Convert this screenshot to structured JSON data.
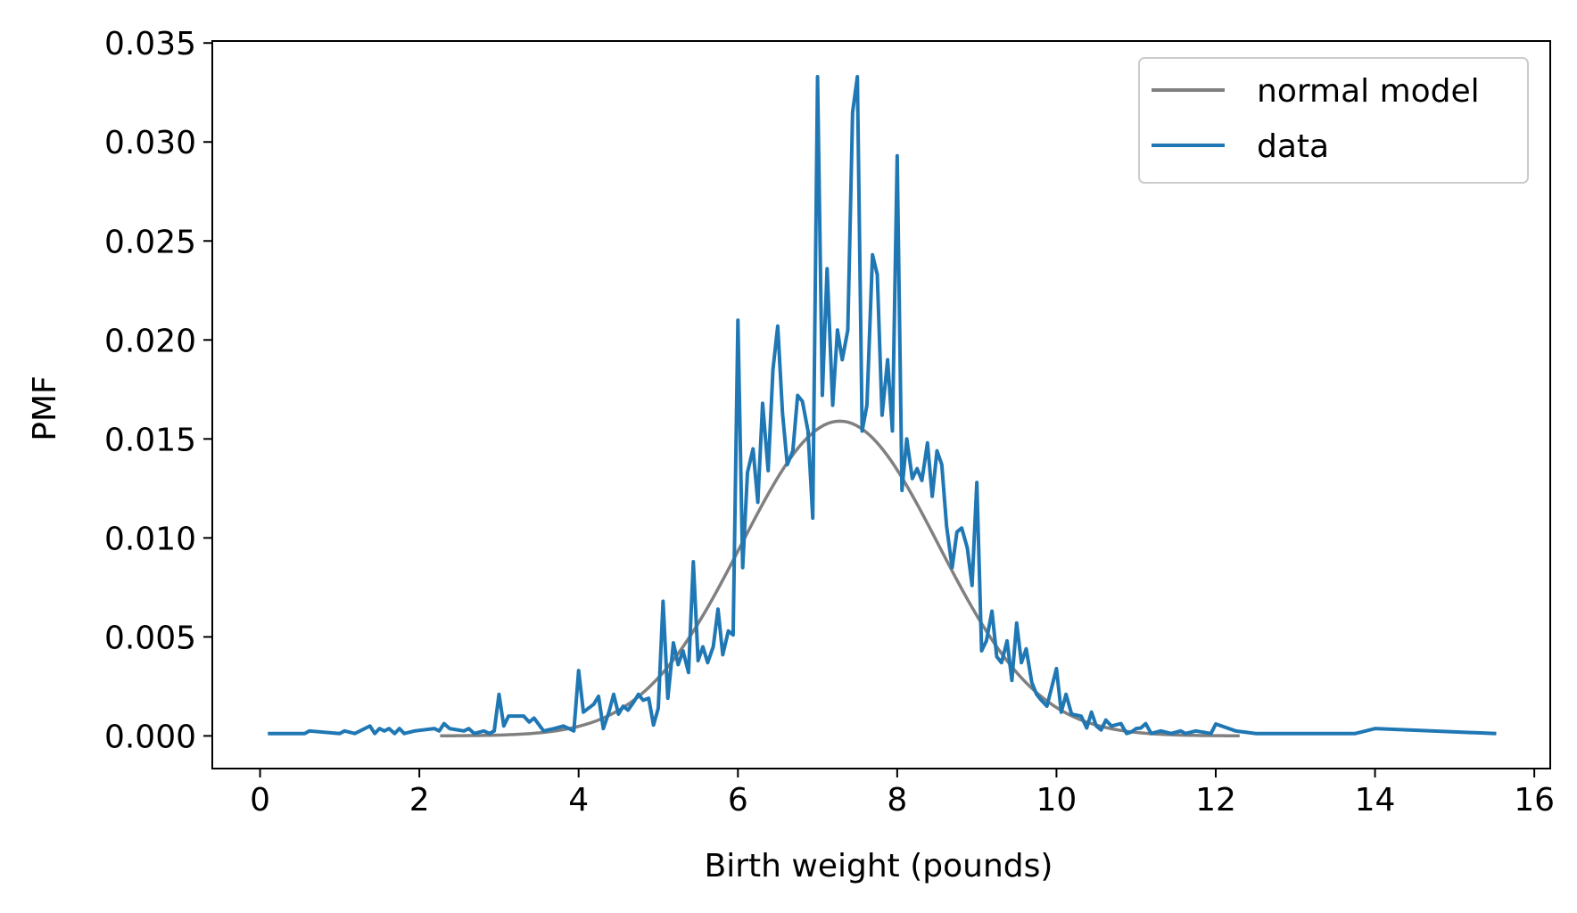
{
  "chart_data": {
    "type": "line",
    "title": "",
    "xlabel": "Birth weight (pounds)",
    "ylabel": "PMF",
    "xlim": [
      -0.6,
      16.2
    ],
    "ylim": [
      -0.00165,
      0.0351
    ],
    "xticks": [
      0,
      2,
      4,
      6,
      8,
      10,
      12,
      14,
      16
    ],
    "xtick_labels": [
      "0",
      "2",
      "4",
      "6",
      "8",
      "10",
      "12",
      "14",
      "16"
    ],
    "yticks": [
      0.0,
      0.005,
      0.01,
      0.015,
      0.02,
      0.025,
      0.03,
      0.035
    ],
    "ytick_labels": [
      "0.000",
      "0.005",
      "0.010",
      "0.015",
      "0.020",
      "0.025",
      "0.030",
      "0.035"
    ],
    "grid": false,
    "legend": {
      "position": "top-right",
      "entries": [
        "normal model",
        "data"
      ]
    },
    "series": [
      {
        "name": "normal model",
        "color": "#808080",
        "kind": "normal-curve",
        "mean": 7.28,
        "sd": 1.24,
        "peak": 0.0159,
        "x_range": [
          2.28,
          12.28
        ]
      },
      {
        "name": "data",
        "color": "#1f77b4",
        "points": [
          [
            0.12,
            0.00012
          ],
          [
            0.56,
            0.00012
          ],
          [
            0.62,
            0.00025
          ],
          [
            1.0,
            0.00012
          ],
          [
            1.06,
            0.00025
          ],
          [
            1.19,
            0.00012
          ],
          [
            1.38,
            0.0005
          ],
          [
            1.44,
            0.00012
          ],
          [
            1.5,
            0.00037
          ],
          [
            1.56,
            0.00025
          ],
          [
            1.62,
            0.00037
          ],
          [
            1.69,
            0.00012
          ],
          [
            1.75,
            0.00037
          ],
          [
            1.81,
            0.00012
          ],
          [
            1.94,
            0.00025
          ],
          [
            2.19,
            0.00037
          ],
          [
            2.25,
            0.00025
          ],
          [
            2.31,
            0.00062
          ],
          [
            2.38,
            0.00037
          ],
          [
            2.56,
            0.00025
          ],
          [
            2.62,
            0.00037
          ],
          [
            2.69,
            0.00012
          ],
          [
            2.81,
            0.00025
          ],
          [
            2.88,
            0.00012
          ],
          [
            2.94,
            0.00025
          ],
          [
            3.0,
            0.0021
          ],
          [
            3.06,
            0.0005
          ],
          [
            3.12,
            0.001
          ],
          [
            3.31,
            0.001
          ],
          [
            3.38,
            0.0007
          ],
          [
            3.44,
            0.0009
          ],
          [
            3.56,
            0.00025
          ],
          [
            3.69,
            0.00037
          ],
          [
            3.81,
            0.0005
          ],
          [
            3.94,
            0.00025
          ],
          [
            4.0,
            0.0033
          ],
          [
            4.06,
            0.0012
          ],
          [
            4.19,
            0.0016
          ],
          [
            4.25,
            0.002
          ],
          [
            4.31,
            0.00037
          ],
          [
            4.38,
            0.0012
          ],
          [
            4.44,
            0.0021
          ],
          [
            4.5,
            0.0011
          ],
          [
            4.56,
            0.0015
          ],
          [
            4.62,
            0.0013
          ],
          [
            4.69,
            0.0017
          ],
          [
            4.75,
            0.0021
          ],
          [
            4.81,
            0.0018
          ],
          [
            4.88,
            0.0019
          ],
          [
            4.94,
            0.00055
          ],
          [
            5.0,
            0.0014
          ],
          [
            5.06,
            0.0068
          ],
          [
            5.12,
            0.0019
          ],
          [
            5.19,
            0.0047
          ],
          [
            5.25,
            0.0036
          ],
          [
            5.31,
            0.0043
          ],
          [
            5.38,
            0.0032
          ],
          [
            5.44,
            0.0088
          ],
          [
            5.5,
            0.0038
          ],
          [
            5.56,
            0.0045
          ],
          [
            5.62,
            0.0037
          ],
          [
            5.69,
            0.0045
          ],
          [
            5.75,
            0.0064
          ],
          [
            5.81,
            0.0041
          ],
          [
            5.88,
            0.0053
          ],
          [
            5.94,
            0.0051
          ],
          [
            6.0,
            0.021
          ],
          [
            6.06,
            0.0085
          ],
          [
            6.12,
            0.0133
          ],
          [
            6.19,
            0.0145
          ],
          [
            6.25,
            0.0118
          ],
          [
            6.31,
            0.0168
          ],
          [
            6.38,
            0.0134
          ],
          [
            6.44,
            0.0185
          ],
          [
            6.5,
            0.0207
          ],
          [
            6.56,
            0.0163
          ],
          [
            6.62,
            0.0137
          ],
          [
            6.69,
            0.0144
          ],
          [
            6.75,
            0.0172
          ],
          [
            6.81,
            0.0169
          ],
          [
            6.88,
            0.0154
          ],
          [
            6.94,
            0.011
          ],
          [
            7.0,
            0.0333
          ],
          [
            7.06,
            0.0172
          ],
          [
            7.12,
            0.0236
          ],
          [
            7.19,
            0.0167
          ],
          [
            7.25,
            0.0205
          ],
          [
            7.31,
            0.019
          ],
          [
            7.38,
            0.0205
          ],
          [
            7.44,
            0.0315
          ],
          [
            7.5,
            0.0333
          ],
          [
            7.56,
            0.0154
          ],
          [
            7.62,
            0.0167
          ],
          [
            7.69,
            0.0243
          ],
          [
            7.75,
            0.0233
          ],
          [
            7.81,
            0.0162
          ],
          [
            7.88,
            0.019
          ],
          [
            7.94,
            0.0154
          ],
          [
            8.0,
            0.0293
          ],
          [
            8.06,
            0.0124
          ],
          [
            8.12,
            0.015
          ],
          [
            8.19,
            0.013
          ],
          [
            8.25,
            0.0135
          ],
          [
            8.31,
            0.0129
          ],
          [
            8.38,
            0.0148
          ],
          [
            8.44,
            0.0121
          ],
          [
            8.5,
            0.0144
          ],
          [
            8.56,
            0.0137
          ],
          [
            8.62,
            0.0106
          ],
          [
            8.69,
            0.0085
          ],
          [
            8.75,
            0.0103
          ],
          [
            8.81,
            0.0105
          ],
          [
            8.88,
            0.0095
          ],
          [
            8.94,
            0.0076
          ],
          [
            9.0,
            0.0128
          ],
          [
            9.06,
            0.0043
          ],
          [
            9.12,
            0.0048
          ],
          [
            9.19,
            0.0063
          ],
          [
            9.25,
            0.004
          ],
          [
            9.31,
            0.0037
          ],
          [
            9.38,
            0.0048
          ],
          [
            9.44,
            0.0028
          ],
          [
            9.5,
            0.0057
          ],
          [
            9.56,
            0.0037
          ],
          [
            9.62,
            0.0044
          ],
          [
            9.69,
            0.0027
          ],
          [
            9.75,
            0.0021
          ],
          [
            9.81,
            0.0018
          ],
          [
            9.88,
            0.0015
          ],
          [
            10.0,
            0.0034
          ],
          [
            10.06,
            0.0012
          ],
          [
            10.12,
            0.0021
          ],
          [
            10.19,
            0.0011
          ],
          [
            10.31,
            0.001
          ],
          [
            10.38,
            0.0004
          ],
          [
            10.44,
            0.0012
          ],
          [
            10.5,
            0.0005
          ],
          [
            10.56,
            0.0003
          ],
          [
            10.62,
            0.0008
          ],
          [
            10.69,
            0.0005
          ],
          [
            10.81,
            0.00062
          ],
          [
            10.88,
            0.00012
          ],
          [
            10.94,
            0.0002
          ],
          [
            11.0,
            0.00037
          ],
          [
            11.06,
            0.0004
          ],
          [
            11.12,
            0.00062
          ],
          [
            11.19,
            0.00012
          ],
          [
            11.31,
            0.00025
          ],
          [
            11.44,
            0.00012
          ],
          [
            11.56,
            0.00025
          ],
          [
            11.62,
            0.00012
          ],
          [
            11.75,
            0.00025
          ],
          [
            11.94,
            0.00012
          ],
          [
            12.0,
            0.0006
          ],
          [
            12.25,
            0.00025
          ],
          [
            12.5,
            0.00012
          ],
          [
            13.75,
            0.00012
          ],
          [
            14.0,
            0.00037
          ],
          [
            15.5,
            0.00012
          ]
        ]
      }
    ]
  }
}
